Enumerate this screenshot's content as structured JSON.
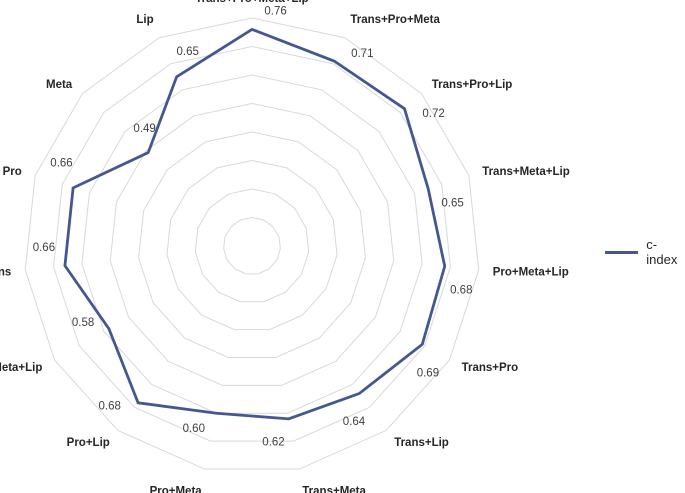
{
  "chart_data": {
    "type": "radar",
    "categories": [
      "Trans+Pro+Meta+Lip",
      "Trans+Pro+Meta",
      "Trans+Pro+Lip",
      "Trans+Meta+Lip",
      "Pro+Meta+Lip",
      "Trans+Pro",
      "Trans+Lip",
      "Trans+Meta",
      "Pro+Meta",
      "Pro+Lip",
      "Meta+Lip",
      "Trans",
      "Pro",
      "Meta",
      "Lip"
    ],
    "series": [
      {
        "name": "c-index",
        "values": [
          0.76,
          0.71,
          0.72,
          0.65,
          0.68,
          0.69,
          0.64,
          0.62,
          0.6,
          0.68,
          0.58,
          0.66,
          0.66,
          0.49,
          0.65
        ],
        "labels": [
          "0.76",
          "0.71",
          "0.72",
          "0.65",
          "0.68",
          "0.69",
          "0.64",
          "0.62",
          "0.60",
          "0.68",
          "0.58",
          "0.66",
          "0.66",
          "0.49",
          "0.65"
        ],
        "color": "#44578f"
      }
    ],
    "rlim": [
      0,
      0.8
    ],
    "grid_rings": 8,
    "grid_color": "#d9d9d9",
    "legend_position": "right"
  }
}
